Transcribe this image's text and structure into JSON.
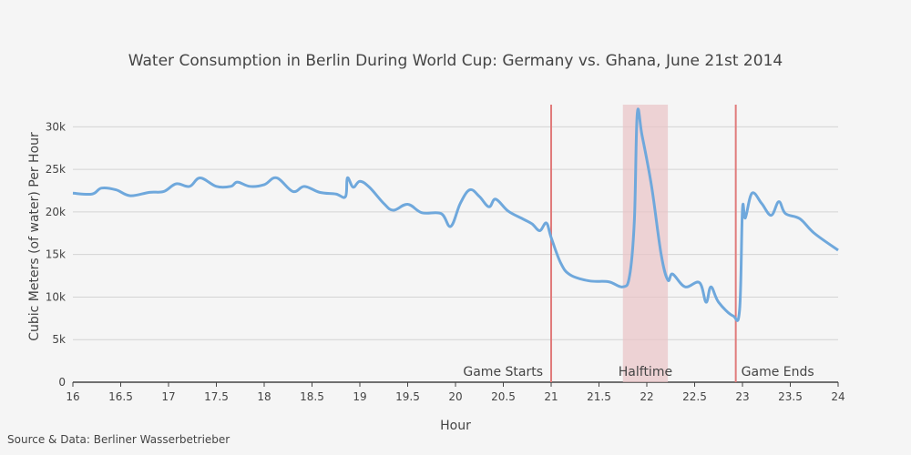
{
  "chart_data": {
    "type": "line",
    "title": "Water Consumption in Berlin During World Cup: Germany vs. Ghana, June 21st 2014",
    "x_label": "Hour",
    "y_label": "Cubic Meters (of water) Per Hour",
    "source": "Source & Data: Berliner Wasserbetrieber",
    "xlim": [
      16,
      24
    ],
    "ylim": [
      0,
      32600
    ],
    "xticks": [
      16,
      16.5,
      17,
      17.5,
      18,
      18.5,
      19,
      19.5,
      20,
      20.5,
      21,
      21.5,
      22,
      22.5,
      23,
      23.5,
      24
    ],
    "yticks": [
      0,
      {
        "value": 5000,
        "label": "5k"
      },
      {
        "value": 10000,
        "label": "10k"
      },
      {
        "value": 15000,
        "label": "15k"
      },
      {
        "value": 20000,
        "label": "20k"
      },
      {
        "value": 25000,
        "label": "25k"
      },
      {
        "value": 30000,
        "label": "30k"
      }
    ],
    "grid": true,
    "events": [
      {
        "label": "Game Starts",
        "x": 21,
        "color": "#e07b7b"
      },
      {
        "label": "Halftime",
        "x0": 21.75,
        "x1": 22.22,
        "color": "#e9c3c6"
      },
      {
        "label": "Game Ends",
        "x": 22.93,
        "color": "#e07b7b"
      }
    ],
    "series": [
      {
        "color": "#6fa8dc",
        "x": [
          16.0,
          16.2,
          16.3,
          16.45,
          16.6,
          16.8,
          16.95,
          17.08,
          17.22,
          17.33,
          17.5,
          17.65,
          17.72,
          17.85,
          18.0,
          18.13,
          18.3,
          18.42,
          18.58,
          18.75,
          18.85,
          18.87,
          18.93,
          19.0,
          19.1,
          19.25,
          19.35,
          19.5,
          19.65,
          19.85,
          19.95,
          20.05,
          20.15,
          20.25,
          20.35,
          20.42,
          20.55,
          20.7,
          20.8,
          20.88,
          20.95,
          21.0,
          21.1,
          21.2,
          21.4,
          21.6,
          21.75,
          21.82,
          21.87,
          21.9,
          21.95,
          22.05,
          22.15,
          22.22,
          22.27,
          22.4,
          22.55,
          22.62,
          22.67,
          22.75,
          22.9,
          22.97,
          23.0,
          23.03,
          23.1,
          23.2,
          23.3,
          23.38,
          23.45,
          23.6,
          23.75,
          24.0
        ],
        "values": [
          22200,
          22100,
          22800,
          22600,
          21900,
          22300,
          22400,
          23300,
          23000,
          24000,
          23000,
          23000,
          23500,
          23000,
          23200,
          24000,
          22400,
          23000,
          22300,
          22100,
          21800,
          24000,
          22900,
          23600,
          22900,
          21000,
          20200,
          20900,
          19900,
          19800,
          18300,
          21000,
          22600,
          21800,
          20600,
          21500,
          20100,
          19200,
          18600,
          17800,
          18700,
          17000,
          14000,
          12600,
          11900,
          11800,
          11200,
          12500,
          19000,
          31500,
          29000,
          23000,
          15000,
          12000,
          12700,
          11200,
          11700,
          9400,
          11200,
          9400,
          7800,
          8500,
          20300,
          19300,
          22200,
          21000,
          19600,
          21200,
          19800,
          19200,
          17500,
          15500
        ]
      }
    ]
  }
}
